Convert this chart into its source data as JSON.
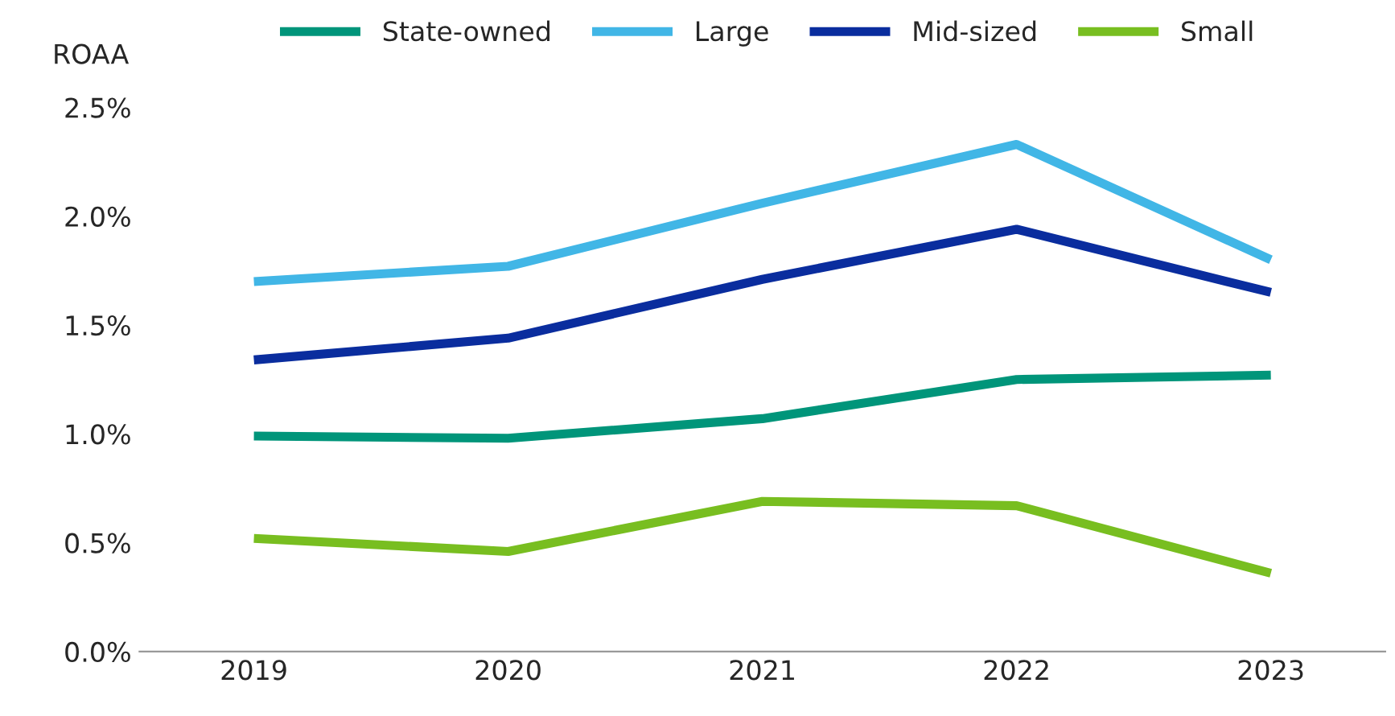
{
  "chart_data": {
    "type": "line",
    "ylabel": "ROAA",
    "categories": [
      "2019",
      "2020",
      "2021",
      "2022",
      "2023"
    ],
    "series": [
      {
        "name": "State-owned",
        "color": "#00957a",
        "values": [
          0.99,
          0.98,
          1.07,
          1.25,
          1.27
        ]
      },
      {
        "name": "Large",
        "color": "#41b6e6",
        "values": [
          1.7,
          1.77,
          2.06,
          2.33,
          1.8
        ]
      },
      {
        "name": "Mid-sized",
        "color": "#0a2d9e",
        "values": [
          1.34,
          1.44,
          1.71,
          1.94,
          1.65
        ]
      },
      {
        "name": "Small",
        "color": "#78be20",
        "values": [
          0.52,
          0.46,
          0.69,
          0.67,
          0.36
        ]
      }
    ],
    "ylim": [
      0,
      2.5
    ],
    "yticks": [
      {
        "value": 0,
        "label": "0.0%"
      },
      {
        "value": 0.5,
        "label": "0.5%"
      },
      {
        "value": 1,
        "label": "1.0%"
      },
      {
        "value": 1.5,
        "label": "1.5%"
      },
      {
        "value": 2,
        "label": "2.0%"
      },
      {
        "value": 2.5,
        "label": "2.5%"
      }
    ],
    "grid": false,
    "legend": "top",
    "marker": "none",
    "line_style": "solid"
  }
}
